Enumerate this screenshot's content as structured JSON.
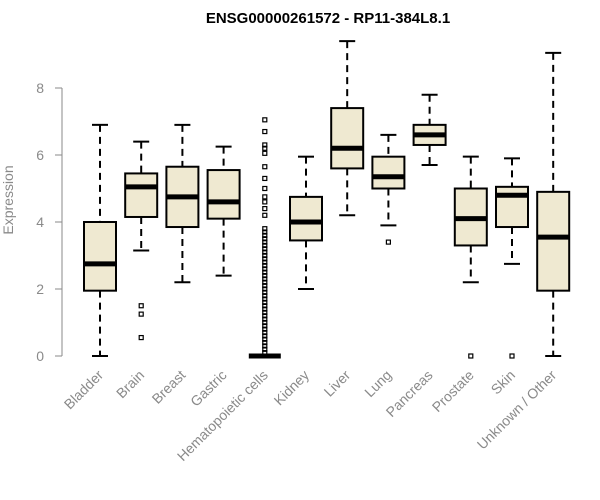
{
  "chart_data": {
    "type": "boxplot",
    "title": "ENSG00000261572 - RP11-384L8.1",
    "xlabel": "",
    "ylabel": "Expression",
    "ylim": [
      0,
      9.5
    ],
    "yticks": [
      0,
      2,
      4,
      6,
      8
    ],
    "box_color": "#efe9d1",
    "line_color": "#000000",
    "categories": [
      "Bladder",
      "Brain",
      "Breast",
      "Gastric",
      "Hematopoietic cells",
      "Kidney",
      "Liver",
      "Lung",
      "Pancreas",
      "Prostate",
      "Skin",
      "Unknown / Other"
    ],
    "boxes": [
      {
        "name": "Bladder",
        "min": 0.0,
        "q1": 1.95,
        "median": 2.75,
        "q3": 4.0,
        "max": 6.9,
        "outliers": []
      },
      {
        "name": "Brain",
        "min": 3.15,
        "q1": 4.15,
        "median": 5.05,
        "q3": 5.45,
        "max": 6.4,
        "outliers": [
          1.5,
          1.25,
          0.55
        ]
      },
      {
        "name": "Breast",
        "min": 2.2,
        "q1": 3.85,
        "median": 4.75,
        "q3": 5.65,
        "max": 6.9,
        "outliers": []
      },
      {
        "name": "Gastric",
        "min": 2.4,
        "q1": 4.1,
        "median": 4.6,
        "q3": 5.55,
        "max": 6.25,
        "outliers": []
      },
      {
        "name": "Hematopoietic cells",
        "min": 0.0,
        "q1": 0.0,
        "median": 0.0,
        "q3": 0.0,
        "max": 0.0,
        "outliers": [
          7.05,
          6.7,
          6.3,
          6.2,
          6.05,
          5.65,
          5.3,
          5.0,
          4.75,
          4.6,
          4.4,
          4.2,
          3.8,
          3.7,
          3.6,
          3.5,
          3.4,
          3.3,
          3.2,
          3.1,
          3.0,
          2.9,
          2.8,
          2.7,
          2.6,
          2.5,
          2.4,
          2.3,
          2.2,
          2.1,
          2.0,
          1.9,
          1.8,
          1.7,
          1.6,
          1.5,
          1.4,
          1.3,
          1.2,
          1.1,
          1.0,
          0.9,
          0.8,
          0.7,
          0.6,
          0.5,
          0.4,
          0.3,
          0.2,
          0.1
        ]
      },
      {
        "name": "Kidney",
        "min": 2.0,
        "q1": 3.45,
        "median": 4.0,
        "q3": 4.75,
        "max": 5.95,
        "outliers": []
      },
      {
        "name": "Liver",
        "min": 4.2,
        "q1": 5.6,
        "median": 6.2,
        "q3": 7.4,
        "max": 9.4,
        "outliers": []
      },
      {
        "name": "Lung",
        "min": 3.9,
        "q1": 5.0,
        "median": 5.35,
        "q3": 5.95,
        "max": 6.6,
        "outliers": [
          3.4
        ]
      },
      {
        "name": "Pancreas",
        "min": 5.7,
        "q1": 6.3,
        "median": 6.6,
        "q3": 6.9,
        "max": 7.8,
        "outliers": []
      },
      {
        "name": "Prostate",
        "min": 2.2,
        "q1": 3.3,
        "median": 4.1,
        "q3": 5.0,
        "max": 5.95,
        "outliers": [
          0.0
        ]
      },
      {
        "name": "Skin",
        "min": 2.75,
        "q1": 3.85,
        "median": 4.8,
        "q3": 5.05,
        "max": 5.9,
        "outliers": [
          0.0
        ]
      },
      {
        "name": "Unknown / Other",
        "min": 0.0,
        "q1": 1.95,
        "median": 3.55,
        "q3": 4.9,
        "max": 9.05,
        "outliers": []
      }
    ]
  }
}
